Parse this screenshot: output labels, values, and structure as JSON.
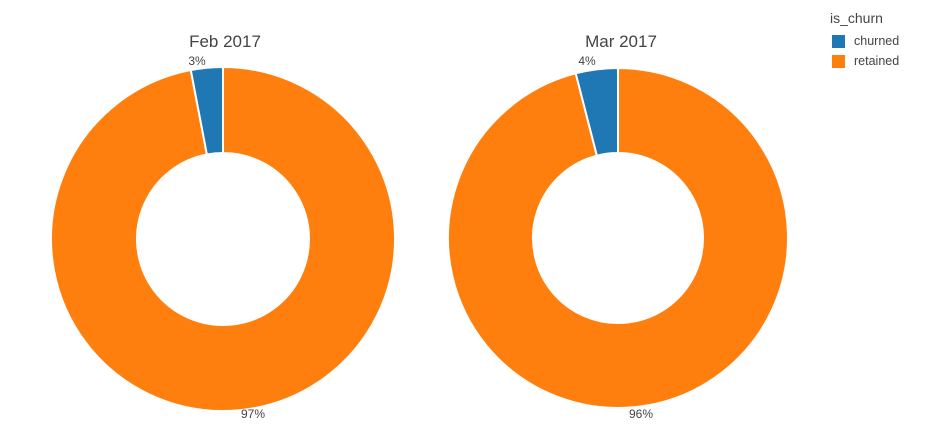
{
  "legend": {
    "title": "is_churn",
    "items": [
      {
        "label": "churned",
        "color": "#1f77b4"
      },
      {
        "label": "retained",
        "color": "#ff7f0e"
      }
    ]
  },
  "chart_data": [
    {
      "type": "pie",
      "title": "Feb 2017",
      "labels": [
        "churned",
        "retained"
      ],
      "values": [
        3,
        97
      ],
      "colors": [
        "#1f77b4",
        "#ff7f0e"
      ],
      "hole": 0.5,
      "direction": "clockwise",
      "start_angle_deg": 0,
      "sort": "descending",
      "text_labels": [
        "3%",
        "97%"
      ],
      "label_position": "outside",
      "legend_title": "is_churn"
    },
    {
      "type": "pie",
      "title": "Mar 2017",
      "labels": [
        "churned",
        "retained"
      ],
      "values": [
        4,
        96
      ],
      "colors": [
        "#1f77b4",
        "#ff7f0e"
      ],
      "hole": 0.5,
      "direction": "clockwise",
      "start_angle_deg": 0,
      "sort": "descending",
      "text_labels": [
        "4%",
        "96%"
      ],
      "label_position": "outside",
      "legend_title": "is_churn"
    }
  ]
}
